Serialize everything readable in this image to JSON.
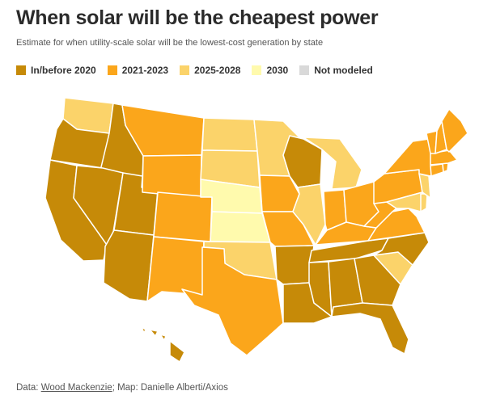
{
  "title": "When solar will be the cheapest power",
  "subtitle": "Estimate for when utility-scale solar will be the lowest-cost generation by state",
  "legend": [
    {
      "label": "In/before 2020",
      "color": "#c68a08"
    },
    {
      "label": "2021-2023",
      "color": "#fba61b"
    },
    {
      "label": "2025-2028",
      "color": "#fbd36a"
    },
    {
      "label": "2030",
      "color": "#fffaad"
    },
    {
      "label": "Not modeled",
      "color": "#d9d9d9"
    }
  ],
  "footer": {
    "prefix": "Data: ",
    "source": "Wood Mackenzie",
    "suffix": "; Map: Danielle Alberti/Axios"
  },
  "states": {
    "WA": "2025-2028",
    "OR": "In/before 2020",
    "CA": "In/before 2020",
    "ID": "In/before 2020",
    "NV": "In/before 2020",
    "UT": "In/before 2020",
    "AZ": "In/before 2020",
    "MT": "2021-2023",
    "WY": "2021-2023",
    "CO": "2021-2023",
    "NM": "2021-2023",
    "TX": "2021-2023",
    "ND": "2025-2028",
    "SD": "2025-2028",
    "NE": "2030",
    "KS": "2030",
    "OK": "2025-2028",
    "MN": "2025-2028",
    "IA": "2021-2023",
    "MO": "2021-2023",
    "AR": "In/before 2020",
    "LA": "In/before 2020",
    "WI": "In/before 2020",
    "IL": "2025-2028",
    "MI": "2025-2028",
    "IN": "2021-2023",
    "OH": "2021-2023",
    "KY": "2021-2023",
    "TN": "In/before 2020",
    "MS": "In/before 2020",
    "AL": "In/before 2020",
    "GA": "In/before 2020",
    "FL": "In/before 2020",
    "SC": "2025-2028",
    "NC": "In/before 2020",
    "VA": "2021-2023",
    "WV": "2021-2023",
    "MD": "2025-2028",
    "DE": "2025-2028",
    "PA": "2021-2023",
    "NJ": "2025-2028",
    "NY": "2021-2023",
    "CT": "2021-2023",
    "RI": "2021-2023",
    "MA": "2021-2023",
    "VT": "2021-2023",
    "NH": "2021-2023",
    "ME": "2021-2023",
    "HI": "In/before 2020"
  }
}
